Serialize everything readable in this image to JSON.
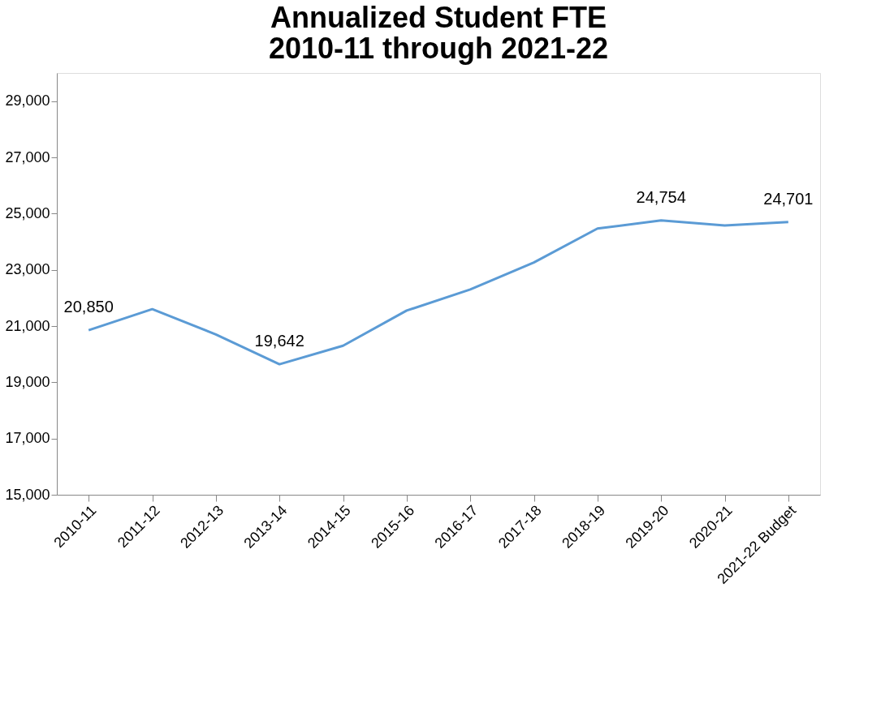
{
  "chart_data": {
    "type": "line",
    "title": [
      "Annualized Student FTE",
      "2010-11 through 2021-22"
    ],
    "categories": [
      "2010-11",
      "2011-12",
      "2012-13",
      "2013-14",
      "2014-15",
      "2015-16",
      "2016-17",
      "2017-18",
      "2018-19",
      "2019-20",
      "2020-21",
      "2021-22 Budget"
    ],
    "series": [
      {
        "color": "#5b9bd5",
        "values": [
          20850,
          21600,
          20700,
          19642,
          20300,
          21550,
          22300,
          23260,
          24470,
          24754,
          24580,
          24701
        ],
        "value_labels": [
          "20,850",
          null,
          null,
          "19,642",
          null,
          null,
          null,
          null,
          null,
          "24,754",
          null,
          "24,701"
        ]
      }
    ],
    "ylim": [
      15000,
      30000
    ],
    "yticks": [
      {
        "value": 15000,
        "label": "15,000"
      },
      {
        "value": 17000,
        "label": "17,000"
      },
      {
        "value": 19000,
        "label": "19,000"
      },
      {
        "value": 21000,
        "label": "21,000"
      },
      {
        "value": 23000,
        "label": "23,000"
      },
      {
        "value": 25000,
        "label": "25,000"
      },
      {
        "value": 27000,
        "label": "27,000"
      },
      {
        "value": 29000,
        "label": "29,000"
      }
    ],
    "grid": false,
    "marker": "none",
    "line_style": "solid"
  }
}
